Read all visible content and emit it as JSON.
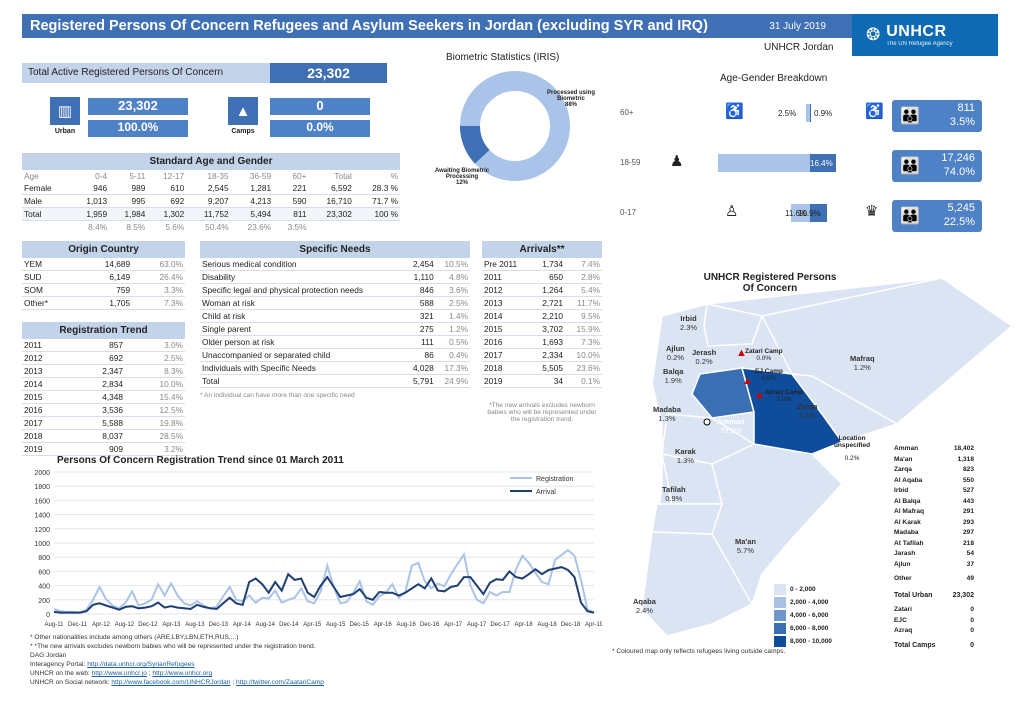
{
  "header": {
    "title": "Registered Persons Of Concern Refugees and Asylum Seekers in Jordan (excluding SYR and IRQ)",
    "date": "31 July 2019",
    "office": "UNHCR Jordan",
    "logo_text": "UNHCR",
    "logo_sub": "The UN Refugee Agency"
  },
  "total": {
    "label": "Total Active Registered Persons Of Concern",
    "value": "23,302"
  },
  "urban": {
    "label": "Urban",
    "value": "23,302",
    "pct": "100.0%"
  },
  "camps": {
    "label": "Camps",
    "value": "0",
    "pct": "0.0%"
  },
  "biometric": {
    "title": "Biometric Statistics (IRIS)",
    "processed_label": "Processed using Biometric",
    "processed_pct": "88%",
    "awaiting_label": "Awaiting Biometric Processing",
    "awaiting_pct": "12%",
    "processed_value": 88,
    "awaiting_value": 12
  },
  "age_gender": {
    "title": "Age-Gender Breakdown",
    "rows": [
      {
        "range": "60+",
        "male_pct": "2.5%",
        "female_pct": "0.9%",
        "male_value": 2.5,
        "female_value": 0.9,
        "total": "811",
        "total_pct": "3.5%"
      },
      {
        "range": "18-59",
        "male_pct": "57.6%",
        "female_pct": "16.4%",
        "male_value": 57.6,
        "female_value": 16.4,
        "total": "17,246",
        "total_pct": "74.0%"
      },
      {
        "range": "0-17",
        "male_pct": "11.6%",
        "female_pct": "10.9%",
        "male_value": 11.6,
        "female_value": 10.9,
        "total": "5,245",
        "total_pct": "22.5%"
      }
    ]
  },
  "standard": {
    "title": "Standard Age and Gender",
    "headers": [
      "Age",
      "0-4",
      "5-11",
      "12-17",
      "18-35",
      "36-59",
      "60+",
      "Total",
      "%"
    ],
    "rows": [
      [
        "Female",
        "946",
        "989",
        "610",
        "2,545",
        "1,281",
        "221",
        "6,592",
        "28.3 %"
      ],
      [
        "Male",
        "1,013",
        "995",
        "692",
        "9,207",
        "4,213",
        "590",
        "16,710",
        "71.7 %"
      ],
      [
        "Total",
        "1,959",
        "1,984",
        "1,302",
        "11,752",
        "5,494",
        "811",
        "23,302",
        "100 %"
      ],
      [
        "",
        "8.4%",
        "8.5%",
        "5.6%",
        "50.4%",
        "23.6%",
        "3.5%",
        "",
        ""
      ]
    ]
  },
  "origin": {
    "title": "Origin Country",
    "rows": [
      [
        "YEM",
        "14,689",
        "63.0%"
      ],
      [
        "SUD",
        "6,149",
        "26.4%"
      ],
      [
        "SOM",
        "759",
        "3.3%"
      ],
      [
        "Other*",
        "1,705",
        "7.3%"
      ]
    ]
  },
  "reg_trend_table": {
    "title": "Registration Trend",
    "rows": [
      [
        "2011",
        "857",
        "3.0%"
      ],
      [
        "2012",
        "692",
        "2.5%"
      ],
      [
        "2013",
        "2,347",
        "8.3%"
      ],
      [
        "2014",
        "2,834",
        "10.0%"
      ],
      [
        "2015",
        "4,348",
        "15.4%"
      ],
      [
        "2016",
        "3,536",
        "12.5%"
      ],
      [
        "2017",
        "5,588",
        "19.8%"
      ],
      [
        "2018",
        "8,037",
        "28.5%"
      ],
      [
        "2019",
        "909",
        "3.2%"
      ]
    ]
  },
  "specific": {
    "title": "Specific Needs",
    "rows": [
      [
        "Serious medical condition",
        "2,454",
        "10.5%"
      ],
      [
        "Disability",
        "1,110",
        "4.8%"
      ],
      [
        "Specific legal and physical protection needs",
        "846",
        "3.6%"
      ],
      [
        "Woman at risk",
        "588",
        "2.5%"
      ],
      [
        "Child at risk",
        "321",
        "1.4%"
      ],
      [
        "Single parent",
        "275",
        "1.2%"
      ],
      [
        "Older person at risk",
        "111",
        "0.5%"
      ],
      [
        "Unaccompanied or separated child",
        "86",
        "0.4%"
      ],
      [
        "Individuals with Specific Needs",
        "4,028",
        "17.3%"
      ],
      [
        "Total",
        "5,791",
        "24.9%"
      ]
    ],
    "note": "* An individual can have more than one specific need"
  },
  "arrivals": {
    "title": "Arrivals**",
    "rows": [
      [
        "Pre 2011",
        "1,734",
        "7.4%"
      ],
      [
        "2011",
        "650",
        "2.8%"
      ],
      [
        "2012",
        "1,264",
        "5.4%"
      ],
      [
        "2013",
        "2,721",
        "11.7%"
      ],
      [
        "2014",
        "2,210",
        "9.5%"
      ],
      [
        "2015",
        "3,702",
        "15.9%"
      ],
      [
        "2016",
        "1,693",
        "7.3%"
      ],
      [
        "2017",
        "2,334",
        "10.0%"
      ],
      [
        "2018",
        "5,505",
        "23.6%"
      ],
      [
        "2019",
        "34",
        "0.1%"
      ]
    ],
    "note": "*The new arrivals excludes newborn babies who will be represented under the registration trend."
  },
  "chart_data": {
    "type": "line",
    "title": "Persons Of Concern Registration Trend since 01 March 2011",
    "ylim": [
      0,
      2000
    ],
    "yticks": [
      "0",
      "200",
      "400",
      "600",
      "800",
      "1000",
      "1200",
      "1400",
      "1600",
      "1800",
      "2000"
    ],
    "xticks": [
      "Aug-11",
      "Dec-11",
      "Apr-12",
      "Aug-12",
      "Dec-12",
      "Apr-13",
      "Aug-13",
      "Dec-13",
      "Apr-14",
      "Aug-14",
      "Dec-14",
      "Apr-15",
      "Aug-15",
      "Dec-15",
      "Apr-16",
      "Aug-16",
      "Dec-16",
      "Apr-17",
      "Aug-17",
      "Dec-17",
      "Apr-18",
      "Aug-18",
      "Dec-18",
      "Apr-19"
    ],
    "series": [
      {
        "name": "Registration",
        "color": "#a9c4e8",
        "values": [
          70,
          40,
          30,
          30,
          20,
          60,
          200,
          380,
          210,
          120,
          80,
          160,
          320,
          120,
          150,
          200,
          420,
          260,
          430,
          260,
          150,
          120,
          180,
          120,
          80,
          100,
          250,
          380,
          200,
          180,
          260,
          160,
          230,
          220,
          330,
          160,
          200,
          230,
          360,
          180,
          150,
          320,
          680,
          380,
          150,
          170,
          300,
          460,
          180,
          130,
          250,
          300,
          420,
          230,
          310,
          680,
          720,
          460,
          360,
          430,
          390,
          560,
          700,
          840,
          400,
          200,
          150,
          310,
          260,
          310,
          310,
          630,
          820,
          720,
          580,
          450,
          420,
          760,
          830,
          900,
          820,
          480,
          60,
          20
        ]
      },
      {
        "name": "Arrival",
        "color": "#1f3f73",
        "values": [
          30,
          20,
          20,
          20,
          20,
          40,
          130,
          150,
          120,
          90,
          60,
          100,
          110,
          80,
          90,
          110,
          160,
          90,
          110,
          90,
          80,
          70,
          130,
          100,
          80,
          70,
          150,
          230,
          150,
          130,
          450,
          500,
          420,
          300,
          450,
          330,
          560,
          480,
          500,
          300,
          240,
          400,
          520,
          380,
          240,
          260,
          280,
          350,
          230,
          200,
          310,
          300,
          300,
          260,
          300,
          360,
          420,
          360,
          500,
          330,
          320,
          380,
          400,
          520,
          520,
          400,
          280,
          440,
          490,
          480,
          600,
          520,
          500,
          560,
          630,
          560,
          620,
          640,
          660,
          620,
          520,
          160,
          40,
          20
        ]
      }
    ]
  },
  "map": {
    "title": "UNHCR Registered Persons Of Concern",
    "regions": [
      {
        "name": "Irbid",
        "pct": "2.3%"
      },
      {
        "name": "Ajlun",
        "pct": "0.2%"
      },
      {
        "name": "Jerash",
        "pct": "0.2%"
      },
      {
        "name": "Balqa",
        "pct": "1.9%"
      },
      {
        "name": "Madaba",
        "pct": "1.3%"
      },
      {
        "name": "Amman",
        "pct": "79.0%"
      },
      {
        "name": "Zarqa",
        "pct": "3.5%"
      },
      {
        "name": "Mafraq",
        "pct": "1.2%"
      },
      {
        "name": "Karak",
        "pct": "1.3%"
      },
      {
        "name": "Tafilah",
        "pct": "0.9%"
      },
      {
        "name": "Ma'an",
        "pct": "5.7%"
      },
      {
        "name": "Aqaba",
        "pct": "2.4%"
      }
    ],
    "camps": [
      {
        "name": "Zatari Camp",
        "pct": "0.0%"
      },
      {
        "name": "EJ Camp",
        "pct": "0.0%"
      },
      {
        "name": "Azraq Camp",
        "pct": "0.0%"
      }
    ],
    "location_unspecified": {
      "label": "Location unspecified",
      "pct": "0.2%"
    },
    "legend": [
      "0 - 2,000",
      "2,000 - 4,000",
      "4,000 - 6,000",
      "6,000 - 8,000",
      "8,000 - 10,000"
    ],
    "legend_colors": [
      "#dbe4f2",
      "#a9c0e0",
      "#6d96cf",
      "#3a6fb4",
      "#0f4c9c"
    ],
    "footnote": "* Coloured map only reflects refugees living outside camps.",
    "totals": [
      [
        "Amman",
        "18,402"
      ],
      [
        "Ma'an",
        "1,318"
      ],
      [
        "Zarqa",
        "823"
      ],
      [
        "Al Aqaba",
        "550"
      ],
      [
        "Irbid",
        "527"
      ],
      [
        "Al Balqa",
        "443"
      ],
      [
        "Al Mafraq",
        "291"
      ],
      [
        "Al Karak",
        "293"
      ],
      [
        "Madaba",
        "297"
      ],
      [
        "At Tafilah",
        "218"
      ],
      [
        "Jarash",
        "54"
      ],
      [
        "Ajlun",
        "37"
      ],
      [
        "Other",
        "49"
      ]
    ],
    "total_urban": [
      "Total Urban",
      "23,302"
    ],
    "camp_totals": [
      [
        "Zatari",
        "0"
      ],
      [
        "EJC",
        "0"
      ],
      [
        "Azraq",
        "0"
      ]
    ],
    "total_camps": [
      "Total Camps",
      "0"
    ]
  },
  "footer": {
    "note1": "* Other nationalities include among others (ARE,LBY,LBN,ETH,RUS,...)",
    "note2": "* *The new arrivals excludes newborn babies who will be represented under the registration trend.",
    "note3": "DAG Jordan",
    "l1_label": "Interagency Portal:",
    "l1_link": "http://data.unhcr.org/SyrianRefugees",
    "l2_label": "UNHCR on the web:",
    "l2_link1": "http://www.unhcr.jo",
    "l2_link2": "http://www.unhcr.org",
    "l3_label": "UNHCR on Social network:",
    "l3_link1": "http://www.facebook.com/UNHCRJordan",
    "l3_link2": "http://twitter.com/ZaatariCamp"
  }
}
